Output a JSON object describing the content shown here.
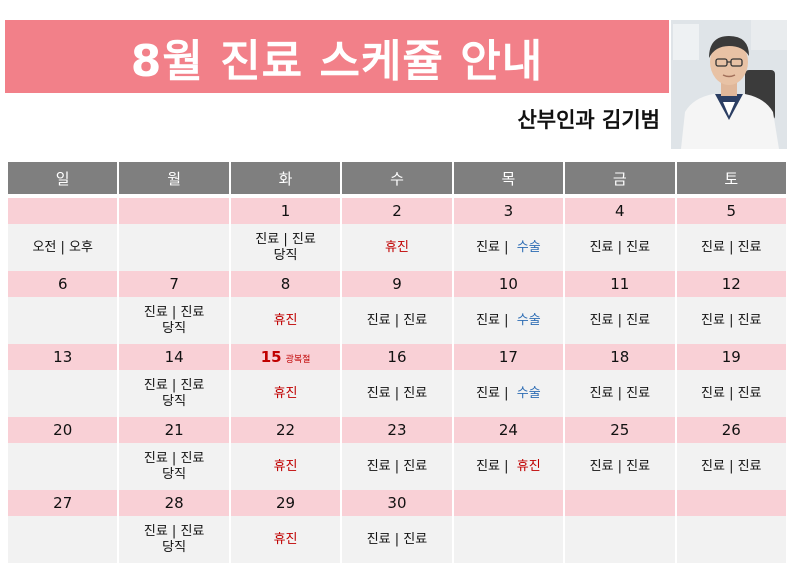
{
  "title": "8월 진료 스케쥴 안내",
  "doctor": "산부인과 김기범",
  "weekdays": [
    "일",
    "월",
    "화",
    "수",
    "목",
    "금",
    "토"
  ],
  "weeks": [
    {
      "dates": [
        "",
        "",
        "1",
        "2",
        "3",
        "4",
        "5"
      ],
      "info": [
        {
          "a": "오전 | 오후"
        },
        {
          "a": ""
        },
        {
          "a": "진료 | 진료",
          "b": "당직"
        },
        {
          "a": "휴진",
          "red": true
        },
        {
          "a": "진료 |",
          "c": "수술",
          "blue": true
        },
        {
          "a": "진료 | 진료"
        },
        {
          "a": "진료 | 진료"
        }
      ]
    },
    {
      "dates": [
        "6",
        "7",
        "8",
        "9",
        "10",
        "11",
        "12"
      ],
      "info": [
        {
          "a": ""
        },
        {
          "a": "진료 | 진료",
          "b": "당직"
        },
        {
          "a": "휴진",
          "red": true
        },
        {
          "a": "진료 | 진료"
        },
        {
          "a": "진료 |",
          "c": "수술",
          "blue": true
        },
        {
          "a": "진료 | 진료"
        },
        {
          "a": "진료 | 진료"
        }
      ]
    },
    {
      "dates": [
        "13",
        "14",
        "15",
        "16",
        "17",
        "18",
        "19"
      ],
      "holiday_name": "광복절",
      "info": [
        {
          "a": ""
        },
        {
          "a": "진료 | 진료",
          "b": "당직"
        },
        {
          "a": "휴진",
          "red": true
        },
        {
          "a": "진료 | 진료"
        },
        {
          "a": "진료 |",
          "c": "수술",
          "blue": true
        },
        {
          "a": "진료 | 진료"
        },
        {
          "a": "진료 | 진료"
        }
      ]
    },
    {
      "dates": [
        "20",
        "21",
        "22",
        "23",
        "24",
        "25",
        "26"
      ],
      "info": [
        {
          "a": ""
        },
        {
          "a": "진료 | 진료",
          "b": "당직"
        },
        {
          "a": "휴진",
          "red": true
        },
        {
          "a": "진료 | 진료"
        },
        {
          "a": "진료 |",
          "c": "휴진",
          "redc": true
        },
        {
          "a": "진료 | 진료"
        },
        {
          "a": "진료 | 진료"
        }
      ]
    },
    {
      "dates": [
        "27",
        "28",
        "29",
        "30",
        "",
        "",
        ""
      ],
      "info": [
        {
          "a": ""
        },
        {
          "a": "진료 | 진료",
          "b": "당직"
        },
        {
          "a": "휴진",
          "red": true
        },
        {
          "a": "진료 | 진료"
        },
        {
          "a": ""
        },
        {
          "a": ""
        },
        {
          "a": ""
        }
      ]
    }
  ],
  "colors": {
    "banner": "#f28089",
    "header": "#7f7f7f",
    "date_row": "#f9d0d6",
    "info_row": "#f2f2f2",
    "red": "#c00000",
    "blue": "#2e6db4"
  }
}
